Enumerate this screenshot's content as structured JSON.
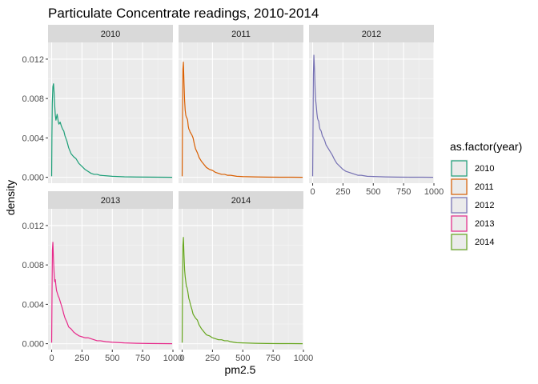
{
  "chart_data": {
    "type": "line",
    "title": "Particulate Concentrate readings, 2010-2014",
    "xlabel": "pm2.5",
    "ylabel": "density",
    "xlim": [
      -30,
      1000
    ],
    "ylim": [
      -0.0006,
      0.0137
    ],
    "x_ticks": [
      0,
      250,
      500,
      750,
      1000
    ],
    "x_tick_labels": [
      "0",
      "250",
      "500",
      "750",
      "1000"
    ],
    "y_ticks": [
      0,
      0.004,
      0.008,
      0.012
    ],
    "y_tick_labels": [
      "0.000",
      "0.004",
      "0.008",
      "0.012"
    ],
    "grid": true,
    "legend_position": "right",
    "legend_title": "as.factor(year)",
    "series": [
      {
        "name": "2010",
        "color": "#1b9e77",
        "x": [
          0,
          2,
          5,
          10,
          15,
          20,
          25,
          30,
          35,
          40,
          45,
          50,
          55,
          60,
          65,
          70,
          75,
          80,
          90,
          100,
          110,
          125,
          140,
          160,
          180,
          200,
          225,
          250,
          275,
          300,
          325,
          350,
          375,
          400,
          450,
          500,
          600,
          700,
          800,
          900,
          994
        ],
        "y": [
          0.0001,
          0.0042,
          0.0075,
          0.0092,
          0.0095,
          0.0086,
          0.0073,
          0.0063,
          0.0058,
          0.0061,
          0.0064,
          0.006,
          0.0056,
          0.0054,
          0.0055,
          0.0056,
          0.0054,
          0.0052,
          0.0049,
          0.0047,
          0.0042,
          0.0037,
          0.003,
          0.0024,
          0.0021,
          0.0019,
          0.0014,
          0.0011,
          0.0008,
          0.0006,
          0.0004,
          0.0003,
          0.0003,
          0.0002,
          0.00015,
          0.0001,
          5e-05,
          3e-05,
          2e-05,
          1e-05,
          0.0
        ]
      },
      {
        "name": "2011",
        "color": "#d95f02",
        "x": [
          0,
          3,
          6,
          10,
          15,
          20,
          25,
          30,
          35,
          40,
          45,
          50,
          55,
          60,
          65,
          70,
          80,
          90,
          100,
          110,
          125,
          140,
          160,
          180,
          200,
          225,
          250,
          275,
          300,
          325,
          350,
          375,
          400,
          450,
          500,
          600,
          700,
          800,
          900,
          994
        ],
        "y": [
          0.0001,
          0.0065,
          0.011,
          0.0117,
          0.0096,
          0.0078,
          0.0068,
          0.0063,
          0.0061,
          0.006,
          0.0058,
          0.0052,
          0.0049,
          0.0048,
          0.0046,
          0.0045,
          0.0043,
          0.004,
          0.0034,
          0.0029,
          0.0025,
          0.002,
          0.0016,
          0.0013,
          0.001,
          0.0008,
          0.0007,
          0.0005,
          0.0004,
          0.0003,
          0.0003,
          0.0002,
          0.0002,
          0.0001,
          7e-05,
          4e-05,
          2e-05,
          1e-05,
          1e-05,
          0.0
        ]
      },
      {
        "name": "2012",
        "color": "#7570b3",
        "x": [
          0,
          3,
          6,
          10,
          15,
          20,
          25,
          30,
          35,
          40,
          45,
          50,
          55,
          60,
          70,
          80,
          90,
          100,
          110,
          125,
          140,
          160,
          180,
          200,
          225,
          250,
          275,
          300,
          325,
          350,
          375,
          400,
          450,
          500,
          600,
          700,
          800,
          900,
          994
        ],
        "y": [
          0.0001,
          0.0055,
          0.0105,
          0.0124,
          0.011,
          0.009,
          0.0078,
          0.0072,
          0.0065,
          0.006,
          0.0058,
          0.0057,
          0.0052,
          0.0049,
          0.0047,
          0.0042,
          0.004,
          0.0037,
          0.0033,
          0.003,
          0.0027,
          0.0023,
          0.0018,
          0.0014,
          0.0011,
          0.0008,
          0.0006,
          0.0005,
          0.0004,
          0.0003,
          0.0002,
          0.0002,
          0.0001,
          8e-05,
          4e-05,
          2e-05,
          1e-05,
          1e-05,
          0.0
        ]
      },
      {
        "name": "2013",
        "color": "#e7298a",
        "x": [
          0,
          3,
          6,
          10,
          15,
          20,
          25,
          30,
          35,
          40,
          45,
          50,
          55,
          60,
          65,
          70,
          80,
          90,
          100,
          110,
          125,
          140,
          160,
          180,
          200,
          225,
          250,
          275,
          300,
          325,
          350,
          375,
          400,
          450,
          500,
          600,
          700,
          800,
          900,
          994
        ],
        "y": [
          0.0001,
          0.0055,
          0.0095,
          0.0103,
          0.0085,
          0.0072,
          0.0063,
          0.0065,
          0.0059,
          0.0054,
          0.0052,
          0.005,
          0.0048,
          0.0047,
          0.0045,
          0.0043,
          0.0039,
          0.0035,
          0.003,
          0.0026,
          0.0022,
          0.0017,
          0.0015,
          0.0012,
          0.001,
          0.0008,
          0.0007,
          0.0006,
          0.0006,
          0.0005,
          0.0004,
          0.0003,
          0.0003,
          0.0002,
          0.00015,
          8e-05,
          4e-05,
          2e-05,
          1e-05,
          0.0
        ]
      },
      {
        "name": "2014",
        "color": "#66a61e",
        "x": [
          0,
          3,
          6,
          10,
          15,
          20,
          25,
          30,
          35,
          40,
          45,
          50,
          55,
          60,
          70,
          80,
          90,
          100,
          110,
          125,
          140,
          160,
          180,
          200,
          225,
          250,
          275,
          300,
          325,
          350,
          375,
          400,
          450,
          500,
          600,
          700,
          800,
          900,
          994
        ],
        "y": [
          0.0001,
          0.006,
          0.01,
          0.0108,
          0.009,
          0.0075,
          0.0068,
          0.0063,
          0.0058,
          0.0057,
          0.0054,
          0.005,
          0.0046,
          0.0044,
          0.0039,
          0.0035,
          0.003,
          0.0028,
          0.0026,
          0.0024,
          0.0019,
          0.0015,
          0.0012,
          0.0009,
          0.0008,
          0.0006,
          0.0005,
          0.0004,
          0.0004,
          0.0003,
          0.0003,
          0.0002,
          0.0001,
          8e-05,
          4e-05,
          2e-05,
          1e-05,
          1e-05,
          0.0
        ]
      }
    ]
  }
}
